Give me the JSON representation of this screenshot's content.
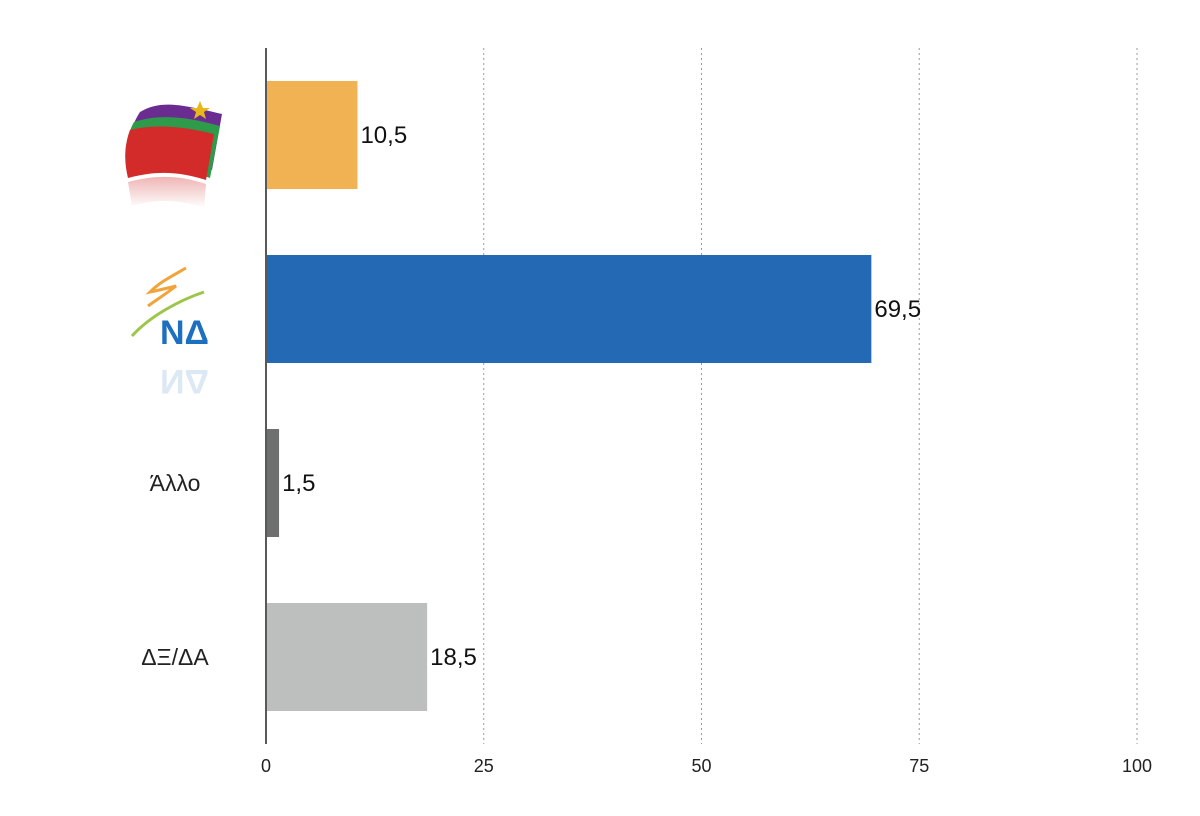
{
  "chart_data": {
    "type": "bar",
    "orientation": "horizontal",
    "categories": [
      {
        "label": "",
        "logo": "syriza-flag-logo",
        "value": 10.5,
        "value_label": "10,5",
        "color": "#F0B252"
      },
      {
        "label": "",
        "logo": "nd-party-logo",
        "value": 69.5,
        "value_label": "69,5",
        "color": "#2369B4"
      },
      {
        "label": "Άλλο",
        "logo": null,
        "value": 1.5,
        "value_label": "1,5",
        "color": "#6E706F"
      },
      {
        "label": "ΔΞ/ΔΑ",
        "logo": null,
        "value": 18.5,
        "value_label": "18,5",
        "color": "#BDBFBE"
      }
    ],
    "xlim": [
      0,
      100
    ],
    "xticks": [
      0,
      25,
      50,
      75,
      100
    ],
    "xtick_labels": [
      "0",
      "25",
      "50",
      "75",
      "100"
    ],
    "grid": "vertical-dotted",
    "legend": "none",
    "title": "",
    "xlabel": "",
    "ylabel": ""
  }
}
